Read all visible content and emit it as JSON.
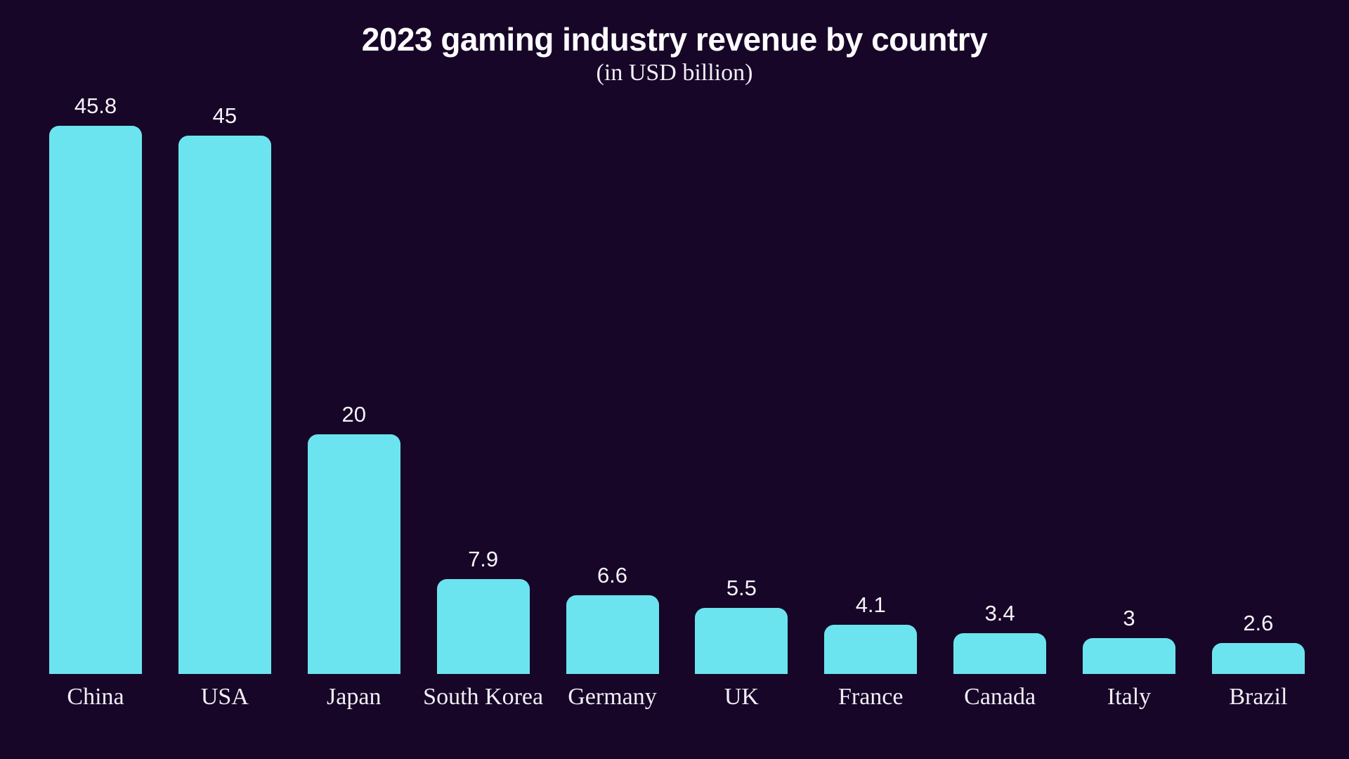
{
  "header": {
    "title": "2023 gaming industry revenue by country",
    "subtitle": "(in USD billion)"
  },
  "chart_data": {
    "type": "bar",
    "title": "2023 gaming industry revenue by country",
    "subtitle": "(in USD billion)",
    "categories": [
      "China",
      "USA",
      "Japan",
      "South Korea",
      "Germany",
      "UK",
      "France",
      "Canada",
      "Italy",
      "Brazil"
    ],
    "values": [
      45.8,
      45,
      20,
      7.9,
      6.6,
      5.5,
      4.1,
      3.4,
      3,
      2.6
    ],
    "value_labels": [
      "45.8",
      "45",
      "20",
      "7.9",
      "6.6",
      "5.5",
      "4.1",
      "3.4",
      "3",
      "2.6"
    ],
    "xlabel": "",
    "ylabel": "",
    "ylim": [
      0,
      45.8
    ],
    "grid": false,
    "legend": false,
    "axes_visible": false,
    "orientation": "vertical"
  },
  "colors": {
    "background": "#170628",
    "bar": "#6ce4ef",
    "title_text": "#fdfcfe",
    "label_text": "#f2eef6",
    "value_text": "#f6f3f9"
  }
}
